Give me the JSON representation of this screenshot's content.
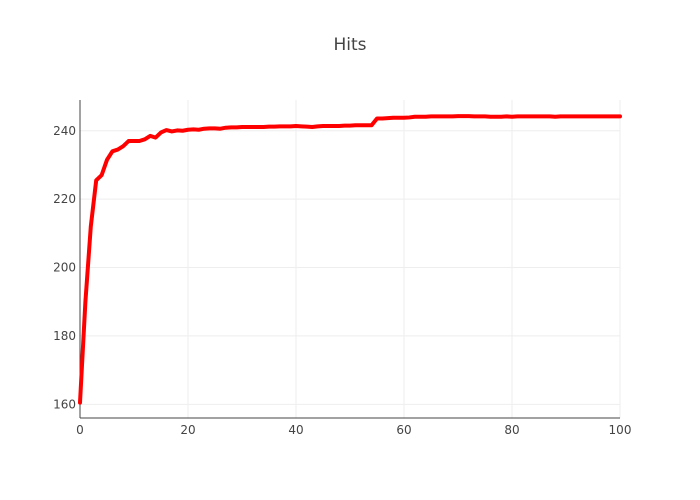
{
  "chart_data": {
    "type": "line",
    "title": "Hits",
    "xlabel": "",
    "ylabel": "",
    "xlim": [
      0,
      100
    ],
    "ylim": [
      156,
      249
    ],
    "x_ticks": [
      0,
      20,
      40,
      60,
      80,
      100
    ],
    "y_ticks": [
      160,
      180,
      200,
      220,
      240
    ],
    "grid": true,
    "legend": "none",
    "series": [
      {
        "color": "#ff0000",
        "x": [
          0,
          1,
          2,
          3,
          4,
          5,
          6,
          7,
          8,
          9,
          10,
          11,
          12,
          13,
          14,
          15,
          16,
          17,
          18,
          19,
          20,
          21,
          22,
          23,
          24,
          25,
          26,
          27,
          28,
          29,
          30,
          31,
          32,
          33,
          34,
          35,
          36,
          37,
          38,
          39,
          40,
          41,
          42,
          43,
          44,
          45,
          46,
          47,
          48,
          49,
          50,
          51,
          52,
          53,
          54,
          55,
          56,
          57,
          58,
          59,
          60,
          61,
          62,
          63,
          64,
          65,
          66,
          67,
          68,
          69,
          70,
          71,
          72,
          73,
          74,
          75,
          76,
          77,
          78,
          79,
          80,
          81,
          82,
          83,
          84,
          85,
          86,
          87,
          88,
          89,
          90,
          91,
          92,
          93,
          94,
          95,
          96,
          97,
          98,
          99,
          100
        ],
        "y": [
          160.5,
          190,
          212,
          225.5,
          227,
          231.5,
          234,
          234.5,
          235.5,
          237,
          237,
          237,
          237.5,
          238.5,
          238,
          239.5,
          240.2,
          239.8,
          240.1,
          240,
          240.3,
          240.4,
          240.3,
          240.6,
          240.7,
          240.7,
          240.6,
          240.9,
          241,
          241,
          241.1,
          241.1,
          241.1,
          241.1,
          241.1,
          241.2,
          241.2,
          241.3,
          241.3,
          241.3,
          241.4,
          241.3,
          241.2,
          241.1,
          241.3,
          241.4,
          241.4,
          241.4,
          241.4,
          241.5,
          241.5,
          241.6,
          241.6,
          241.6,
          241.6,
          243.6,
          243.6,
          243.7,
          243.8,
          243.8,
          243.8,
          243.9,
          244.1,
          244.1,
          244.1,
          244.2,
          244.2,
          244.2,
          244.2,
          244.2,
          244.3,
          244.3,
          244.3,
          244.2,
          244.2,
          244.2,
          244.1,
          244.1,
          244.1,
          244.2,
          244.1,
          244.2,
          244.2,
          244.2,
          244.2,
          244.2,
          244.2,
          244.2,
          244.1,
          244.2,
          244.2,
          244.2,
          244.2,
          244.2,
          244.2,
          244.2,
          244.2,
          244.2,
          244.2,
          244.2,
          244.2
        ]
      }
    ]
  }
}
